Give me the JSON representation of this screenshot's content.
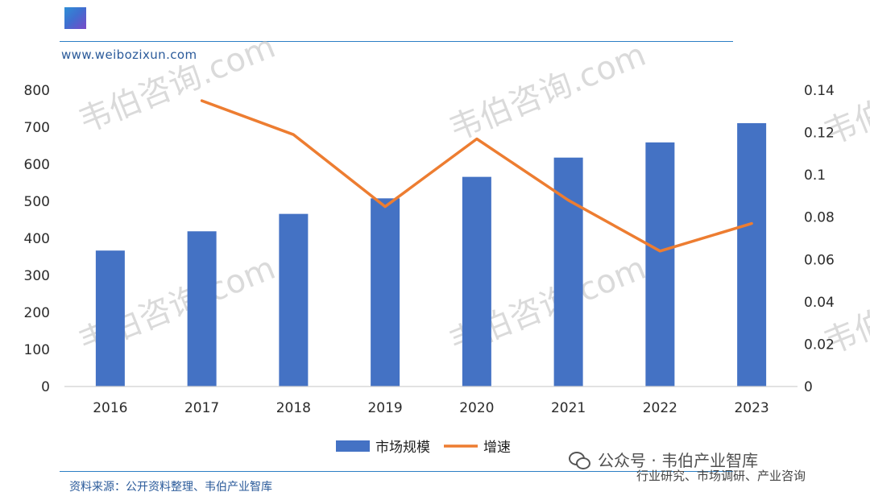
{
  "header": {
    "site_url": "www.weibozixun.com"
  },
  "watermark_text": "韦伯咨询.com",
  "chart_data": {
    "type": "bar",
    "categories": [
      "2016",
      "2017",
      "2018",
      "2019",
      "2020",
      "2021",
      "2022",
      "2023"
    ],
    "series": [
      {
        "name": "市场规模",
        "type": "bar",
        "axis": "left",
        "color": "#4472c4",
        "values": [
          367,
          419,
          466,
          508,
          566,
          618,
          659,
          711
        ]
      },
      {
        "name": "增速",
        "type": "line",
        "axis": "right",
        "color": "#ed7d31",
        "values": [
          null,
          0.135,
          0.119,
          0.085,
          0.117,
          0.088,
          0.064,
          0.077
        ]
      }
    ],
    "left_axis": {
      "min": 0,
      "max": 800,
      "step": 100,
      "ticks": [
        "0",
        "100",
        "200",
        "300",
        "400",
        "500",
        "600",
        "700",
        "800"
      ]
    },
    "right_axis": {
      "min": 0,
      "max": 0.14,
      "step": 0.02,
      "ticks": [
        "0",
        "0.02",
        "0.04",
        "0.06",
        "0.08",
        "0.1",
        "0.12",
        "0.14"
      ]
    },
    "grid": false,
    "legend_position": "bottom-center"
  },
  "footer": {
    "source_note": "资料来源：公开资料整理、韦伯产业智库",
    "wechat_account": "公众号 · 韦伯产业智库",
    "tagline": "行业研究、市场调研、产业咨询"
  }
}
